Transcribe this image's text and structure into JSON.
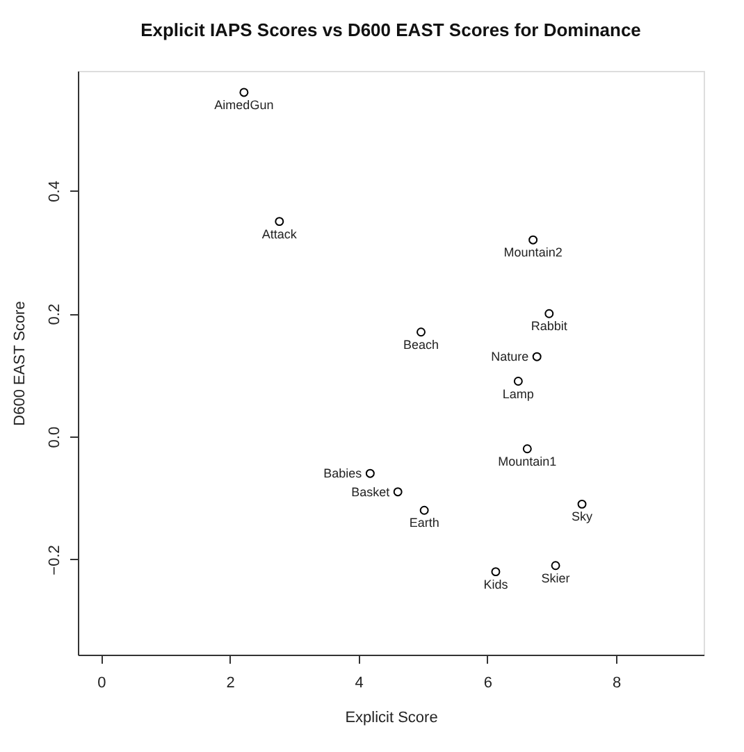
{
  "chart_data": {
    "type": "scatter",
    "title": "Explicit IAPS Scores vs D600 EAST Scores for Dominance",
    "xlabel": "Explicit Score",
    "ylabel": "D600 EAST Score",
    "x": [
      2.22,
      2.77,
      4.97,
      6.71,
      6.96,
      6.77,
      6.48,
      6.62,
      4.18,
      4.61,
      5.02,
      7.47,
      6.13,
      7.06
    ],
    "series": [
      {
        "color": "#000000",
        "values": [
          0.56,
          0.35,
          0.17,
          0.32,
          0.2,
          0.13,
          0.09,
          -0.02,
          -0.06,
          -0.09,
          -0.12,
          -0.11,
          -0.22,
          -0.21
        ]
      }
    ],
    "xlim": [
      -0.36,
      9.36
    ],
    "ylim": [
      -0.355,
      0.595
    ],
    "xticks": [
      0,
      2,
      4,
      6,
      8
    ],
    "yticks": [
      -0.2,
      {
        "value": 0,
        "label": "0.0"
      },
      0.2,
      0.4
    ],
    "marker": "circle",
    "grid": false,
    "annotations": [
      {
        "text": "AimedGun",
        "x": 2.22,
        "y": 0.56
      },
      {
        "text": "Attack",
        "x": 2.77,
        "y": 0.35
      },
      {
        "text": "Beach",
        "x": 4.97,
        "y": 0.17
      },
      {
        "text": "Mountain2",
        "x": 6.71,
        "y": 0.32
      },
      {
        "text": "Rabbit",
        "x": 6.96,
        "y": 0.2
      },
      {
        "text": "Nature",
        "x": 6.77,
        "y": 0.13
      },
      {
        "text": "Lamp",
        "x": 6.48,
        "y": 0.09
      },
      {
        "text": "Mountain1",
        "x": 6.62,
        "y": -0.02
      },
      {
        "text": "Babies",
        "x": 4.18,
        "y": -0.06
      },
      {
        "text": "Basket",
        "x": 4.61,
        "y": -0.09
      },
      {
        "text": "Earth",
        "x": 5.02,
        "y": -0.12
      },
      {
        "text": "Sky",
        "x": 7.47,
        "y": -0.11
      },
      {
        "text": "Kids",
        "x": 6.13,
        "y": -0.22
      },
      {
        "text": "Skier",
        "x": 7.06,
        "y": -0.21
      }
    ]
  }
}
